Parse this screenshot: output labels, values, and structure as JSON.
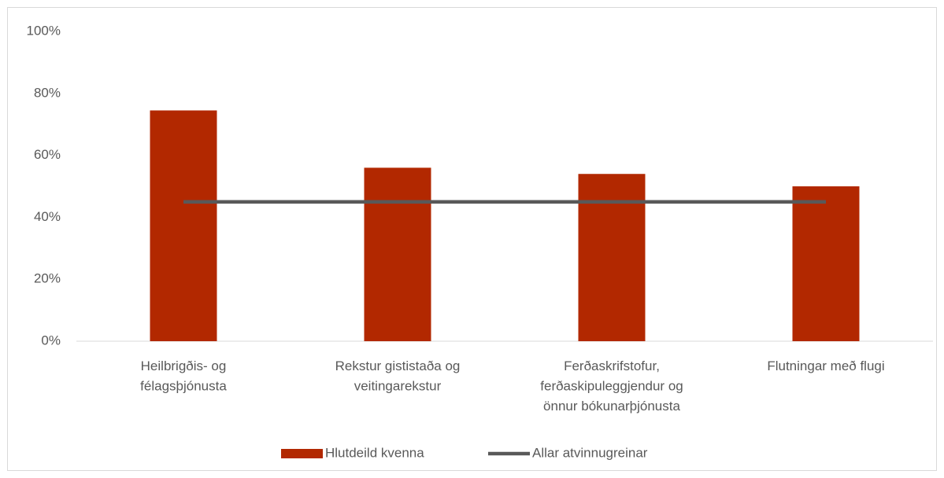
{
  "chart_data": {
    "type": "bar",
    "categories": [
      [
        "Heilbrigðis- og",
        "félagsþjónusta"
      ],
      [
        "Rekstur gististaða og",
        "veitingarekstur"
      ],
      [
        "Ferðaskrifstofur,",
        "ferðaskipuleggjendur og",
        "önnur bókunarþjónusta"
      ],
      [
        "Flutningar með flugi"
      ]
    ],
    "series": [
      {
        "name": "Hlutdeild kvenna",
        "type": "bar",
        "color": "#b22800",
        "values": [
          74.5,
          56,
          54,
          50
        ]
      },
      {
        "name": "Allar atvinnugreinar",
        "type": "line",
        "color": "#595959",
        "values": [
          45,
          45,
          45,
          45
        ]
      }
    ],
    "ylim": [
      0,
      100
    ],
    "yticks": [
      {
        "value": 0,
        "label": "0%"
      },
      {
        "value": 20,
        "label": "20%"
      },
      {
        "value": 40,
        "label": "40%"
      },
      {
        "value": 60,
        "label": "60%"
      },
      {
        "value": 80,
        "label": "80%"
      },
      {
        "value": 100,
        "label": "100%"
      }
    ],
    "grid": false,
    "legend": "bottom"
  }
}
